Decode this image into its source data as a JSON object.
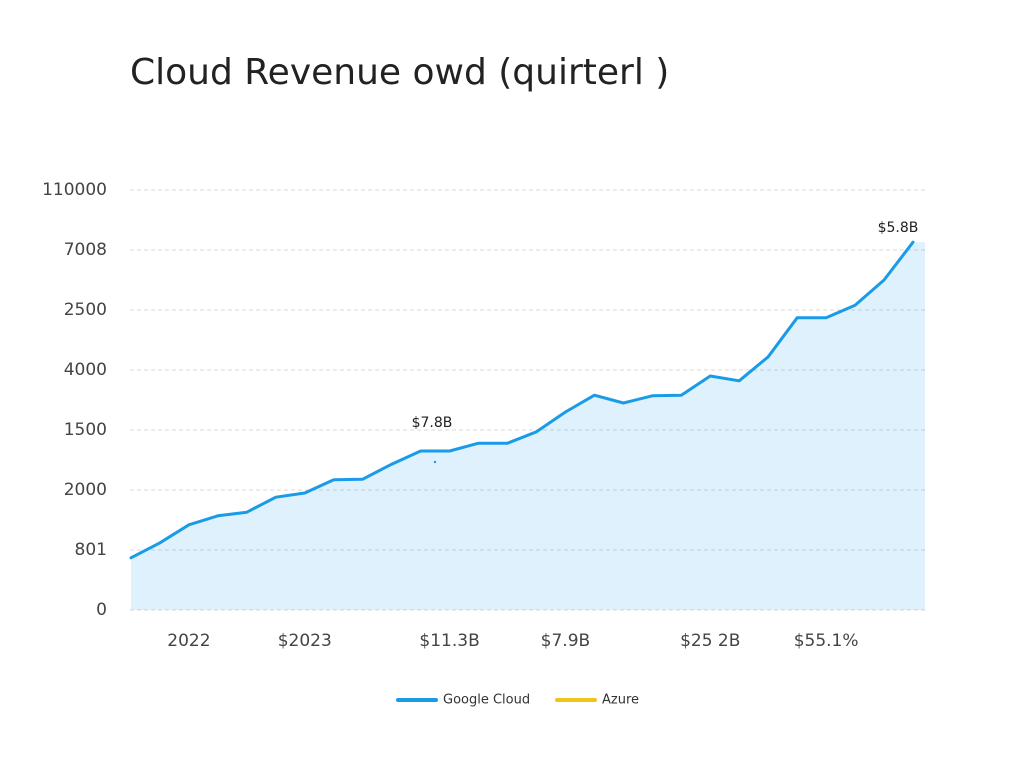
{
  "chart_data": {
    "type": "line",
    "title": "Cloud Revenue owd (quirterl )",
    "categories": [
      null,
      null,
      "2022",
      null,
      null,
      null,
      "$2023",
      null,
      null,
      null,
      null,
      "$11.3B",
      null,
      null,
      null,
      "$7.9B",
      null,
      null,
      null,
      null,
      "$25 2B",
      null,
      null,
      null,
      "$55.1%",
      null,
      null,
      null
    ],
    "series": [
      {
        "name": "Google Cloud",
        "color": "#1a9be8",
        "values": [
          0.87,
          1.12,
          1.42,
          1.57,
          1.63,
          1.88,
          1.95,
          2.17,
          2.18,
          2.43,
          2.65,
          2.65,
          2.78,
          2.78,
          2.97,
          3.3,
          3.58,
          3.45,
          3.57,
          3.58,
          3.9,
          3.82,
          4.22,
          4.87,
          4.87,
          5.08,
          5.5,
          6.13
        ]
      },
      {
        "name": "Azure",
        "color": "#f2c318",
        "values": [
          null,
          null,
          null,
          null,
          null,
          null,
          null,
          null,
          null,
          null,
          null,
          null,
          null,
          null,
          null,
          null,
          null,
          null,
          null,
          null,
          null,
          null,
          null,
          null,
          null,
          null,
          null,
          null
        ]
      }
    ],
    "ylim": [
      0,
      7
    ],
    "yticks": [
      {
        "value": 0,
        "label": "0"
      },
      {
        "value": 1,
        "label": "801"
      },
      {
        "value": 2,
        "label": "2000"
      },
      {
        "value": 3,
        "label": "1500"
      },
      {
        "value": 4,
        "label": "4000"
      },
      {
        "value": 5,
        "label": "2500"
      },
      {
        "value": 6,
        "label": "7008"
      },
      {
        "value": 7,
        "label": "110000"
      }
    ],
    "grid": true,
    "area": true,
    "annotations": [
      "$7.8B",
      "$5.8B"
    ]
  }
}
